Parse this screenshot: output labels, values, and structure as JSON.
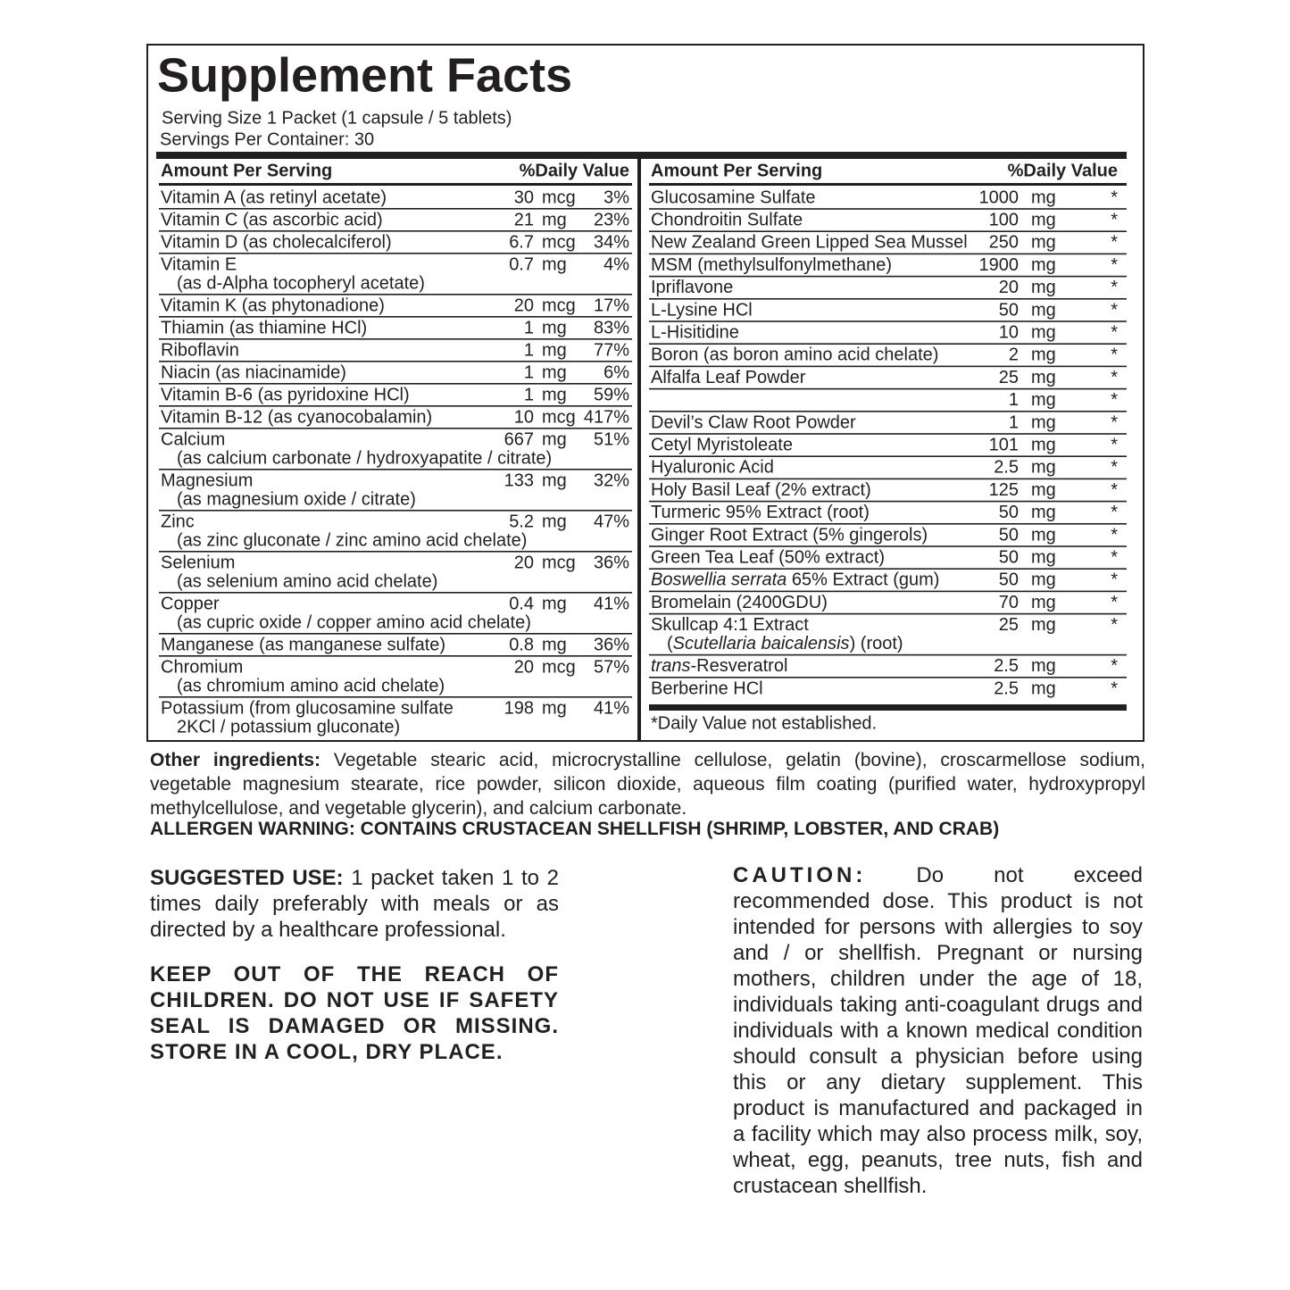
{
  "title": "Supplement Facts",
  "serving_size": "Serving Size 1 Packet (1 capsule / 5 tablets)",
  "servings_per_container": "Servings Per Container: 30",
  "left_table": {
    "headers": [
      "Amount Per Serving",
      "%Daily Value"
    ],
    "rows": [
      {
        "name": "Vitamin A (as retinyl acetate)",
        "amount": 30,
        "unit": "mcg",
        "dv": "3%"
      },
      {
        "name": "Vitamin C (as ascorbic acid)",
        "amount": 21,
        "unit": "mg",
        "dv": "23%"
      },
      {
        "name": "Vitamin D (as cholecalciferol)",
        "amount": 6.7,
        "unit": "mcg",
        "dv": "34%"
      },
      {
        "name": "Vitamin E",
        "sub": "(as d-Alpha tocopheryl acetate)",
        "amount": 0.7,
        "unit": "mg",
        "dv": "4%"
      },
      {
        "name": "Vitamin K (as phytonadione)",
        "amount": 20,
        "unit": "mcg",
        "dv": "17%"
      },
      {
        "name": "Thiamin (as thiamine HCl)",
        "amount": 1,
        "unit": "mg",
        "dv": "83%"
      },
      {
        "name": "Riboflavin",
        "amount": 1,
        "unit": "mg",
        "dv": "77%"
      },
      {
        "name": "Niacin (as niacinamide)",
        "amount": 1,
        "unit": "mg",
        "dv": "6%"
      },
      {
        "name": "Vitamin B-6 (as pyridoxine HCl)",
        "amount": 1,
        "unit": "mg",
        "dv": "59%"
      },
      {
        "name": "Vitamin B-12 (as cyanocobalamin)",
        "amount": 10,
        "unit": "mcg",
        "dv": "417%"
      },
      {
        "name": "Calcium",
        "sub": "(as calcium carbonate / hydroxyapatite / citrate)",
        "amount": 667,
        "unit": "mg",
        "dv": "51%"
      },
      {
        "name": "Magnesium",
        "sub": "(as magnesium oxide / citrate)",
        "amount": 133,
        "unit": "mg",
        "dv": "32%"
      },
      {
        "name": "Zinc",
        "sub": "(as zinc gluconate / zinc amino acid chelate)",
        "amount": 5.2,
        "unit": "mg",
        "dv": "47%"
      },
      {
        "name": "Selenium",
        "sub": "(as selenium amino acid chelate)",
        "amount": 20,
        "unit": "mcg",
        "dv": "36%"
      },
      {
        "name": "Copper",
        "sub": "(as cupric oxide / copper amino acid chelate)",
        "amount": 0.4,
        "unit": "mg",
        "dv": "41%"
      },
      {
        "name": "Manganese (as manganese sulfate)",
        "amount": 0.8,
        "unit": "mg",
        "dv": "36%"
      },
      {
        "name": "Chromium",
        "sub": "(as chromium amino acid chelate)",
        "amount": 20,
        "unit": "mcg",
        "dv": "57%"
      },
      {
        "name": "Potassium (from glucosamine sulfate",
        "sub": "2KCl / potassium gluconate)",
        "amount": 198,
        "unit": "mg",
        "dv": "41%"
      }
    ]
  },
  "right_table": {
    "headers": [
      "Amount Per Serving",
      "%Daily Value"
    ],
    "rows": [
      {
        "name": "Glucosamine Sulfate",
        "amount": 1000,
        "unit": "mg",
        "dv": "*"
      },
      {
        "name": "Chondroitin Sulfate",
        "amount": 100,
        "unit": "mg",
        "dv": "*"
      },
      {
        "name": "New Zealand Green Lipped Sea Mussel",
        "amount": 250,
        "unit": "mg",
        "dv": "*"
      },
      {
        "name": "MSM (methylsulfonylmethane)",
        "amount": 1900,
        "unit": "mg",
        "dv": "*"
      },
      {
        "name": "Ipriflavone",
        "amount": 20,
        "unit": "mg",
        "dv": "*"
      },
      {
        "name": "L-Lysine HCl",
        "amount": 50,
        "unit": "mg",
        "dv": "*"
      },
      {
        "name": "L-Hisitidine",
        "amount": 10,
        "unit": "mg",
        "dv": "*"
      },
      {
        "name": "Boron (as boron amino acid chelate)",
        "amount": 2,
        "unit": "mg",
        "dv": "*"
      },
      {
        "name": "Alfalfa Leaf Powder",
        "amount": 25,
        "unit": "mg",
        "dv": "*"
      },
      {
        "name": null,
        "amount": 1,
        "unit": "mg",
        "dv": "*"
      },
      {
        "name": "Devil’s Claw Root Powder",
        "amount": 1,
        "unit": "mg",
        "dv": "*"
      },
      {
        "name": "Cetyl Myristoleate",
        "amount": 101,
        "unit": "mg",
        "dv": "*"
      },
      {
        "name": "Hyaluronic Acid",
        "amount": 2.5,
        "unit": "mg",
        "dv": "*"
      },
      {
        "name": "Holy Basil Leaf (2% extract)",
        "amount": 125,
        "unit": "mg",
        "dv": "*"
      },
      {
        "name": "Turmeric 95% Extract (root)",
        "amount": 50,
        "unit": "mg",
        "dv": "*"
      },
      {
        "name": "Ginger Root Extract (5% gingerols)",
        "amount": 50,
        "unit": "mg",
        "dv": "*"
      },
      {
        "name": "Green Tea Leaf (50% extract)",
        "amount": 50,
        "unit": "mg",
        "dv": "*"
      },
      {
        "name": [
          {
            "text": "Boswellia serrata",
            "italic": true
          },
          {
            "text": " 65% Extract (gum)"
          }
        ],
        "amount": 50,
        "unit": "mg",
        "dv": "*"
      },
      {
        "name": "Bromelain (2400GDU)",
        "amount": 70,
        "unit": "mg",
        "dv": "*"
      },
      {
        "name": "Skullcap 4:1 Extract",
        "sub": [
          {
            "text": "("
          },
          {
            "text": "Scutellaria baicalensis",
            "italic": true
          },
          {
            "text": ") (root)"
          }
        ],
        "amount": 25,
        "unit": "mg",
        "dv": "*"
      },
      {
        "name": [
          {
            "text": "trans",
            "italic": true
          },
          {
            "text": "-Resveratrol"
          }
        ],
        "amount": 2.5,
        "unit": "mg",
        "dv": "*"
      },
      {
        "name": "Berberine HCl",
        "amount": 2.5,
        "unit": "mg",
        "dv": "*"
      }
    ],
    "footnote": "*Daily Value not established."
  },
  "other_ingredients": {
    "label": "Other ingredients:",
    "text": "Vegetable stearic acid, microcrystalline cellulose, gelatin (bovine), croscarmellose sodium, vegetable magnesium stearate, rice powder, silicon dioxide, aqueous film coating (purified water, hydroxypropyl methylcellulose, and vegetable glycerin), and calcium carbonate."
  },
  "allergen_warning": "ALLERGEN WARNING: CONTAINS CRUSTACEAN SHELLFISH (SHRIMP, LOBSTER, AND CRAB)",
  "suggested_use": {
    "label": "SUGGESTED USE:",
    "text": "1 packet taken 1 to 2 times daily preferably with meals or as directed by a healthcare professional."
  },
  "storage_warning": "KEEP OUT OF THE REACH OF CHILDREN. DO NOT USE IF SAFETY SEAL IS DAMAGED OR MISSING. STORE IN A COOL, DRY PLACE.",
  "caution": {
    "label": "CAUTION:",
    "text": "Do not exceed recommended dose. This product is not intended for persons with allergies to soy and / or shellfish. Pregnant or nursing mothers, children under the age of 18, individuals taking anti-coagulant drugs and individuals with a known medical condition should consult a physician before using this or any dietary supplement. This product is manufactured and packaged in a facility which may also process milk, soy, wheat, egg, peanuts, tree nuts, fish and crustacean shellfish."
  }
}
